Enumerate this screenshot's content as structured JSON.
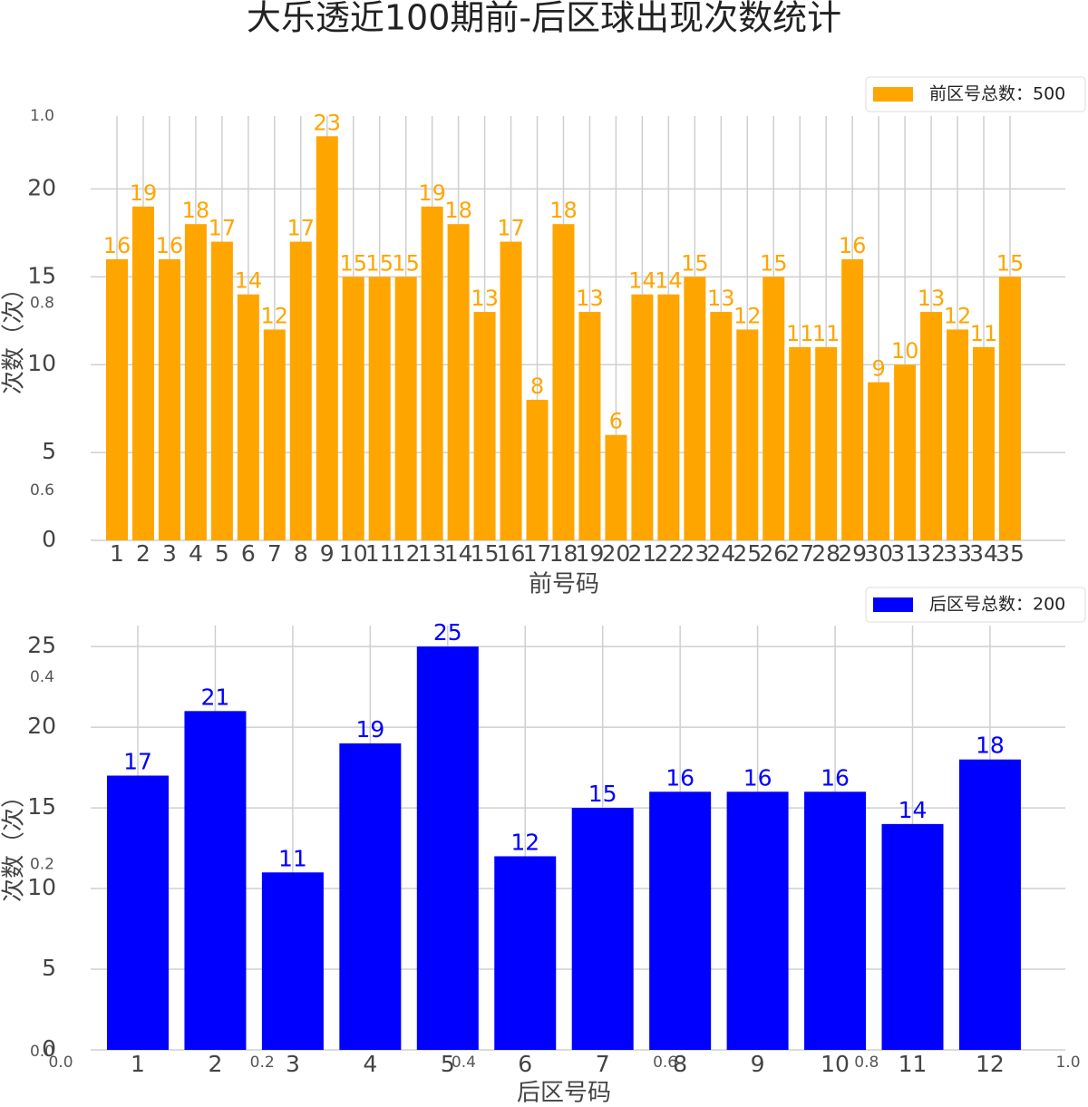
{
  "chart_data": [
    {
      "type": "bar",
      "title": "大乐透近100期前-后区球出现次数统计",
      "xlabel": "前号码",
      "ylabel": "次数（次）",
      "categories": [
        "1",
        "2",
        "3",
        "4",
        "5",
        "6",
        "7",
        "8",
        "9",
        "10",
        "11",
        "12",
        "13",
        "14",
        "15",
        "16",
        "17",
        "18",
        "19",
        "20",
        "21",
        "22",
        "23",
        "24",
        "25",
        "26",
        "27",
        "28",
        "29",
        "30",
        "31",
        "32",
        "33",
        "34",
        "35"
      ],
      "series": [
        {
          "name": "前区号总数：500",
          "color": "#ffa500",
          "values": [
            16,
            19,
            16,
            18,
            17,
            14,
            12,
            17,
            23,
            15,
            15,
            15,
            19,
            18,
            13,
            17,
            8,
            18,
            13,
            6,
            14,
            14,
            15,
            13,
            12,
            15,
            11,
            11,
            16,
            9,
            10,
            13,
            12,
            11,
            15
          ]
        }
      ],
      "ylim": [
        0,
        24.15
      ],
      "yticks": [
        0,
        5,
        10,
        15,
        20
      ],
      "grid": true,
      "legend": "upper right"
    },
    {
      "type": "bar",
      "xlabel": "后区号码",
      "ylabel": "次数（次）",
      "categories": [
        "1",
        "2",
        "3",
        "4",
        "5",
        "6",
        "7",
        "8",
        "9",
        "10",
        "11",
        "12"
      ],
      "series": [
        {
          "name": "后区号总数：200",
          "color": "#0000ff",
          "values": [
            17,
            21,
            11,
            19,
            25,
            12,
            15,
            16,
            16,
            16,
            14,
            18
          ]
        }
      ],
      "ylim": [
        0,
        26.3
      ],
      "yticks": [
        0,
        5,
        10,
        15,
        20,
        25
      ],
      "grid": true,
      "legend": "upper right"
    },
    {
      "type": "axes",
      "xlim": [
        0,
        1
      ],
      "ylim": [
        0,
        1
      ],
      "xticks": [
        {
          "value": 0,
          "label": "0.0"
        },
        {
          "value": 0.2,
          "label": "0.2"
        },
        {
          "value": 0.4,
          "label": "0.4"
        },
        {
          "value": 0.6,
          "label": "0.6"
        },
        {
          "value": 0.8,
          "label": "0.8"
        },
        {
          "value": 1,
          "label": "1.0"
        }
      ],
      "yticks": [
        {
          "value": 0,
          "label": "0.0"
        },
        {
          "value": 0.2,
          "label": "0.2"
        },
        {
          "value": 0.4,
          "label": "0.4"
        },
        {
          "value": 0.6,
          "label": "0.6"
        },
        {
          "value": 0.8,
          "label": "0.8"
        },
        {
          "value": 1,
          "label": "1.0"
        }
      ]
    }
  ]
}
